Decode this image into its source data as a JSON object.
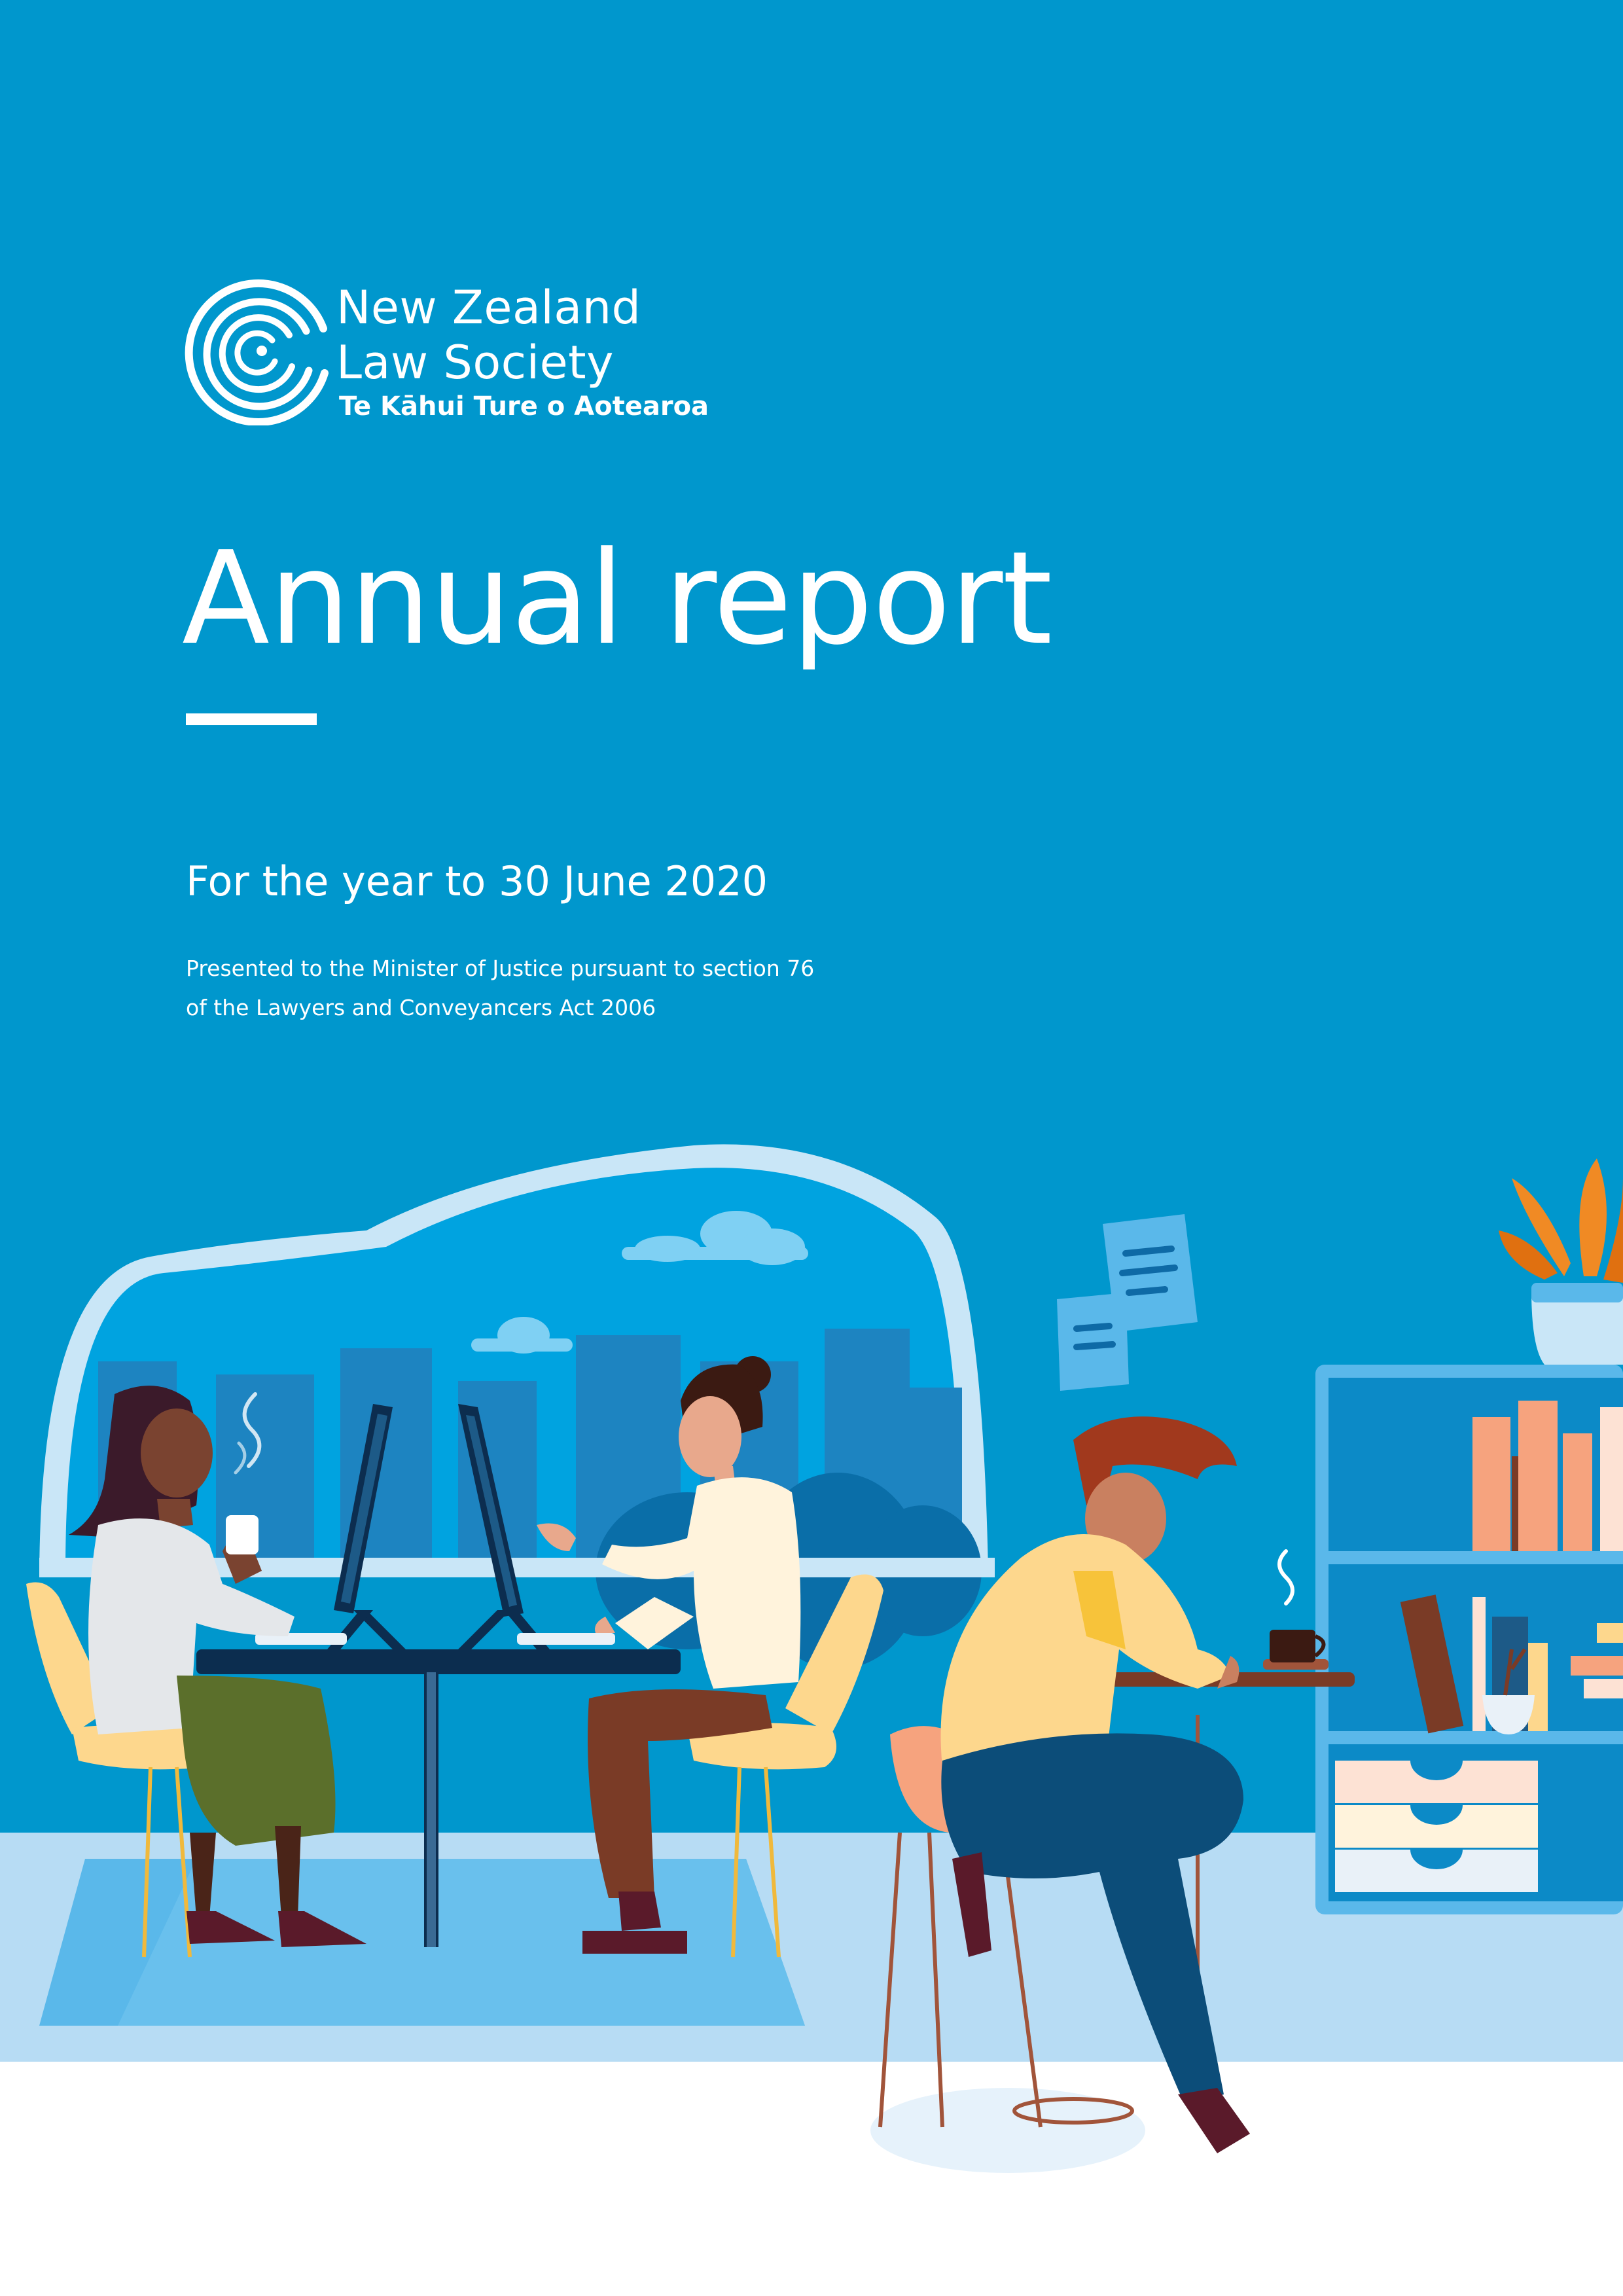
{
  "organisation": {
    "name_line1": "New Zealand",
    "name_line2": "Law Society",
    "maori_name": "Te Kāhui Ture o Aotearoa",
    "logo_icon": "koru-spiral-icon"
  },
  "cover": {
    "title": "Annual report",
    "subtitle": "For the year to 30 June 2020",
    "presented_line1": "Presented to the Minister of Justice pursuant to section 76",
    "presented_line2": "of the Lawyers and Conveyancers Act 2006"
  },
  "colors": {
    "background": "#0097cd",
    "window_sky": "#00a3e0",
    "floor": "#b7dcf4",
    "accent_yellow": "#fdd78d",
    "plant_orange": "#f08a24"
  }
}
